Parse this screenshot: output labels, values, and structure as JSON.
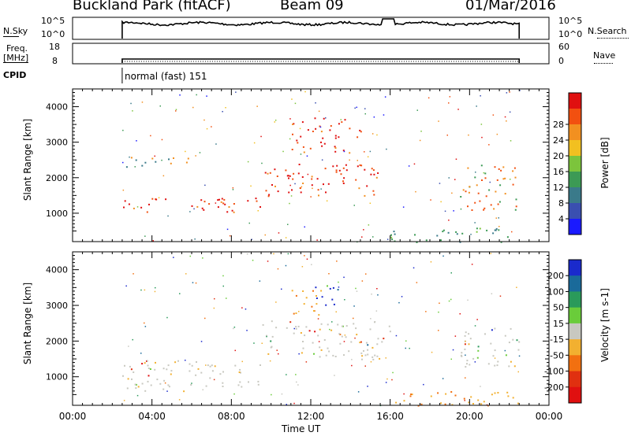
{
  "header": {
    "station": "Buckland Park (fitACF)",
    "beam": "Beam 09",
    "date": "01/Mar/2016"
  },
  "left_labels": {
    "nsky": "N.Sky",
    "nsky_ticks": [
      "10^5",
      "10^0"
    ],
    "freq": "Freq.",
    "freq_unit": "[MHz]",
    "freq_ticks": [
      "18",
      "8"
    ],
    "cpid": "CPID"
  },
  "right_labels": {
    "nsearch": "N.Search",
    "nsearch_ticks": [
      "10^5",
      "10^0"
    ],
    "nave": "Nave",
    "nave_ticks": [
      "60",
      "0"
    ]
  },
  "cpid_text": "normal (fast) 151",
  "chart_data": [
    {
      "type": "heatmap",
      "name_panel": "power",
      "ylabel": "Slant Range [km]",
      "yticks": [
        "1000",
        "2000",
        "3000",
        "4000"
      ],
      "ylim": [
        200,
        4500
      ],
      "xlim_hours": [
        0,
        24
      ],
      "colorbar": {
        "label": "Power [dB]",
        "ticks": [
          "4",
          "8",
          "12",
          "16",
          "20",
          "24",
          "28"
        ],
        "colors": [
          "#1a1aff",
          "#3a4fb0",
          "#3a7a8a",
          "#3c9a55",
          "#7cc43c",
          "#f2c020",
          "#f29020",
          "#f25010",
          "#e01010"
        ]
      },
      "bands": [
        {
          "start": 2.5,
          "end": 9.5,
          "range_low": 1000,
          "range_high": 1450,
          "level": "high"
        },
        {
          "start": 2.5,
          "end": 6.0,
          "range_low": 2300,
          "range_high": 2600,
          "level": "medium"
        },
        {
          "start": 9.5,
          "end": 16.0,
          "range_low": 1500,
          "range_high": 2400,
          "level": "high"
        },
        {
          "start": 11.0,
          "end": 14.5,
          "range_low": 2700,
          "range_high": 3700,
          "level": "high"
        },
        {
          "start": 19.5,
          "end": 22.5,
          "range_low": 1100,
          "range_high": 2400,
          "level": "medium-high"
        },
        {
          "start": 16.0,
          "end": 22.5,
          "range_low": 200,
          "range_high": 600,
          "level": "low"
        }
      ]
    },
    {
      "type": "heatmap",
      "name_panel": "velocity",
      "xlabel": "Time UT",
      "ylabel": "Slant Range [km]",
      "xticks": [
        "00:00",
        "04:00",
        "08:00",
        "12:00",
        "16:00",
        "20:00",
        "00:00"
      ],
      "yticks": [
        "1000",
        "2000",
        "3000",
        "4000"
      ],
      "ylim": [
        200,
        4500
      ],
      "xlim_hours": [
        0,
        24
      ],
      "colorbar": {
        "label": "Velocity [m s-1]",
        "ticks": [
          "200",
          "100",
          "50",
          "15",
          "-15",
          "-50",
          "-100",
          "-200"
        ],
        "colors": [
          "#1a2acc",
          "#1a6a9a",
          "#2a9a5a",
          "#6acc3a",
          "#c8c8c0",
          "#f2b030",
          "#f27010",
          "#e03010",
          "#e01010"
        ]
      },
      "bands": [
        {
          "start": 2.5,
          "end": 9.5,
          "range_low": 600,
          "range_high": 1500,
          "level": "gray"
        },
        {
          "start": 9.5,
          "end": 16.0,
          "range_low": 1500,
          "range_high": 2600,
          "level": "gray"
        },
        {
          "start": 11.0,
          "end": 12.5,
          "range_low": 2600,
          "range_high": 3500,
          "level": "orange"
        },
        {
          "start": 12.0,
          "end": 13.5,
          "range_low": 3000,
          "range_high": 3600,
          "level": "blue"
        },
        {
          "start": 19.5,
          "end": 22.5,
          "range_low": 1200,
          "range_high": 2400,
          "level": "gray"
        },
        {
          "start": 16.0,
          "end": 22.5,
          "range_low": 200,
          "range_high": 600,
          "level": "orange"
        }
      ]
    }
  ]
}
